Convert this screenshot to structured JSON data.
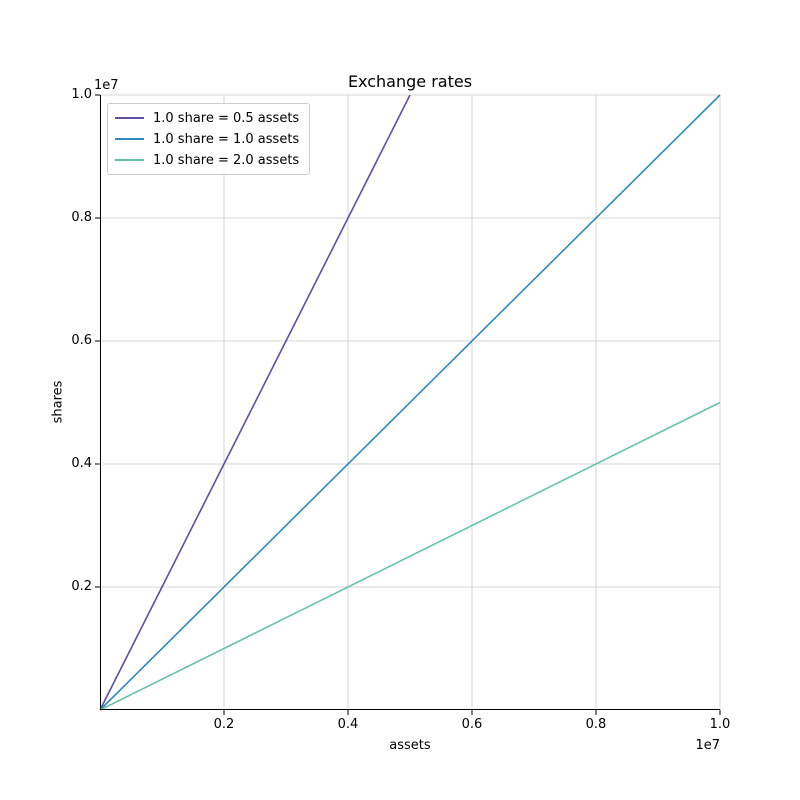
{
  "chart_data": {
    "type": "line",
    "title": "Exchange rates",
    "xlabel": "assets",
    "ylabel": "shares",
    "x_scale_offset": "1e7",
    "y_scale_offset": "1e7",
    "xlim": [
      0,
      10000000
    ],
    "ylim": [
      0,
      10000000
    ],
    "xticks": {
      "values": [
        2000000,
        4000000,
        6000000,
        8000000,
        10000000
      ],
      "labels": [
        "0.2",
        "0.4",
        "0.6",
        "0.8",
        "1.0"
      ]
    },
    "yticks": {
      "values": [
        2000000,
        4000000,
        6000000,
        8000000,
        10000000
      ],
      "labels": [
        "0.2",
        "0.4",
        "0.6",
        "0.8",
        "1.0"
      ]
    },
    "grid": true,
    "legend": {
      "location": "upper left"
    },
    "series": [
      {
        "name": "1.0 share = 0.5 assets",
        "color": "#5e4fa2",
        "x": [
          0,
          5000000
        ],
        "y": [
          0,
          10000000
        ]
      },
      {
        "name": "1.0 share = 1.0 assets",
        "color": "#3288bd",
        "x": [
          0,
          10000000
        ],
        "y": [
          0,
          10000000
        ]
      },
      {
        "name": "1.0 share = 2.0 assets",
        "color": "#66c2a5",
        "x": [
          0,
          10000000
        ],
        "y": [
          0,
          5000000
        ]
      }
    ],
    "colors": {
      "grid": "#d4d4d4",
      "spine": "#000000",
      "text": "#000000",
      "legend_border": "#cccccc"
    }
  }
}
